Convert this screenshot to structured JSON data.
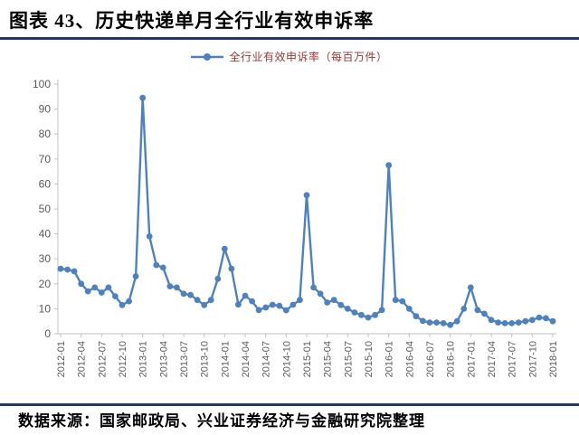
{
  "header": {
    "title": "图表 43、历史快递单月全行业有效申诉率"
  },
  "legend": {
    "label": "全行业有效申诉率（每百万件）",
    "marker": "line-with-circle"
  },
  "footer": {
    "source": "数据来源：国家邮政局、兴业证券经济与金融研究院整理"
  },
  "colors": {
    "line": "#4F81BD",
    "legend_text": "#953735",
    "axis_text": "#595959",
    "axis_line": "#BFBFBF",
    "rule": "#1F3864",
    "title_text": "#000000"
  },
  "chart_data": {
    "type": "line",
    "title": "图表 43、历史快递单月全行业有效申诉率",
    "series_name": "全行业有效申诉率（每百万件）",
    "xlabel": "",
    "ylabel": "",
    "ylim": [
      0,
      100
    ],
    "y_ticks": [
      0,
      10,
      20,
      30,
      40,
      50,
      60,
      70,
      80,
      90,
      100
    ],
    "grid": false,
    "legend_position": "top-center",
    "marker": "circle",
    "frequency": "monthly",
    "x_tick_every": 3,
    "x_tick_labels": [
      "2012-01",
      "2012-04",
      "2012-07",
      "2012-10",
      "2013-01",
      "2013-04",
      "2013-07",
      "2013-10",
      "2014-01",
      "2014-04",
      "2014-07",
      "2014-10",
      "2015-01",
      "2015-04",
      "2015-07",
      "2015-10",
      "2016-01",
      "2016-04",
      "2016-07",
      "2016-10",
      "2017-01",
      "2017-04",
      "2017-07",
      "2017-10",
      "2018-01"
    ],
    "x": [
      "2012-01",
      "2012-02",
      "2012-03",
      "2012-04",
      "2012-05",
      "2012-06",
      "2012-07",
      "2012-08",
      "2012-09",
      "2012-10",
      "2012-11",
      "2012-12",
      "2013-01",
      "2013-02",
      "2013-03",
      "2013-04",
      "2013-05",
      "2013-06",
      "2013-07",
      "2013-08",
      "2013-09",
      "2013-10",
      "2013-11",
      "2013-12",
      "2014-01",
      "2014-02",
      "2014-03",
      "2014-04",
      "2014-05",
      "2014-06",
      "2014-07",
      "2014-08",
      "2014-09",
      "2014-10",
      "2014-11",
      "2014-12",
      "2015-01",
      "2015-02",
      "2015-03",
      "2015-04",
      "2015-05",
      "2015-06",
      "2015-07",
      "2015-08",
      "2015-09",
      "2015-10",
      "2015-11",
      "2015-12",
      "2016-01",
      "2016-02",
      "2016-03",
      "2016-04",
      "2016-05",
      "2016-06",
      "2016-07",
      "2016-08",
      "2016-09",
      "2016-10",
      "2016-11",
      "2016-12",
      "2017-01",
      "2017-02",
      "2017-03",
      "2017-04",
      "2017-05",
      "2017-06",
      "2017-07",
      "2017-08",
      "2017-09",
      "2017-10",
      "2017-11",
      "2017-12",
      "2018-01"
    ],
    "values": [
      26.0,
      25.7,
      25.0,
      20.0,
      17.0,
      18.5,
      16.5,
      18.5,
      15.0,
      11.5,
      13.0,
      23.0,
      94.5,
      39.0,
      27.5,
      26.5,
      19.0,
      18.5,
      16.0,
      15.5,
      13.5,
      11.5,
      13.5,
      22.0,
      34.0,
      26.0,
      11.7,
      15.2,
      13.0,
      9.5,
      10.5,
      11.6,
      11.2,
      9.4,
      11.6,
      13.5,
      55.5,
      18.5,
      16.0,
      12.5,
      13.5,
      11.5,
      10.0,
      8.5,
      7.5,
      6.5,
      7.5,
      9.5,
      67.5,
      13.5,
      13.0,
      10.0,
      7.0,
      5.1,
      4.5,
      4.5,
      4.2,
      3.5,
      5.0,
      10.0,
      18.5,
      9.5,
      8.0,
      5.5,
      4.5,
      4.2,
      4.2,
      4.5,
      5.0,
      5.5,
      6.5,
      6.2,
      5.0
    ]
  }
}
